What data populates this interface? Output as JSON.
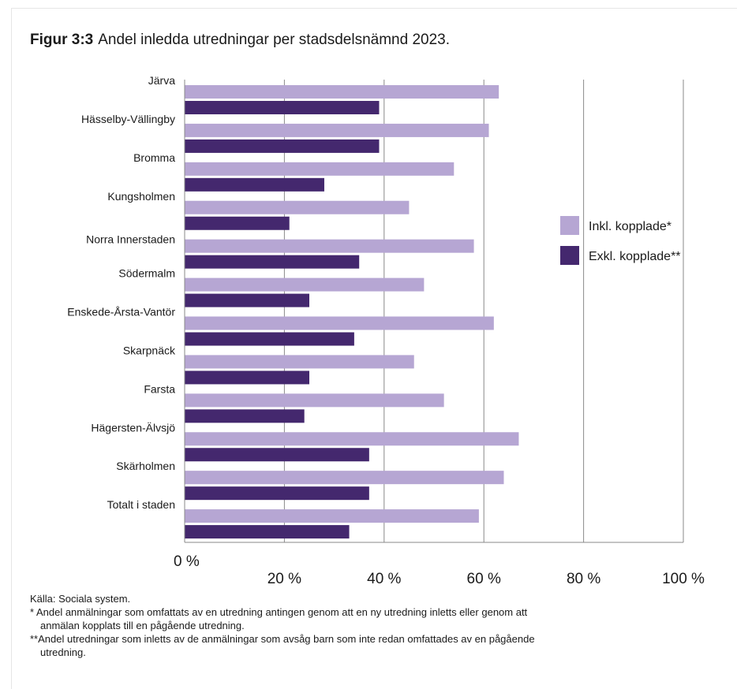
{
  "header": {
    "figure_label": "Figur 3:3",
    "title": "Andel inledda utredningar per stadsdelsnämnd 2023."
  },
  "chart_data": {
    "type": "bar",
    "orientation": "horizontal",
    "categories": [
      "Järva",
      "Hässelby-Vällingby",
      "Bromma",
      "Kungsholmen",
      "Norra Innerstaden",
      "Södermalm",
      "Enskede-Årsta-Vantör",
      "Skarpnäck",
      "Farsta",
      "Hägersten-Älvsjö",
      "Skärholmen",
      "Totalt i staden"
    ],
    "series": [
      {
        "name": "Inkl. kopplade*",
        "color": "#b6a6d3",
        "values": [
          63,
          61,
          54,
          45,
          58,
          48,
          62,
          46,
          52,
          67,
          64,
          59
        ]
      },
      {
        "name": "Exkl. kopplade**",
        "color": "#44286e",
        "values": [
          39,
          39,
          28,
          21,
          35,
          25,
          34,
          25,
          24,
          37,
          37,
          33
        ]
      }
    ],
    "xlim": [
      0,
      100
    ],
    "xticks": [
      0,
      20,
      40,
      60,
      80,
      100
    ],
    "xtick_labels": [
      "0 %",
      "20 %",
      "40 %",
      "60 %",
      "80 %",
      "100 %"
    ],
    "grid": "vertical",
    "legend_position": "right"
  },
  "notes": {
    "source": "Källa: Sociala system.",
    "note1_a": "*  Andel anmälningar som omfattats av en utredning antingen genom att en ny utredning inletts eller   genom att",
    "note1_b": "anmälan kopplats till en pågående utredning.",
    "note2_a": "**Andel utredningar som inletts av de anmälningar som avsåg barn som inte redan omfattades av   en pågående",
    "note2_b": "utredning."
  }
}
